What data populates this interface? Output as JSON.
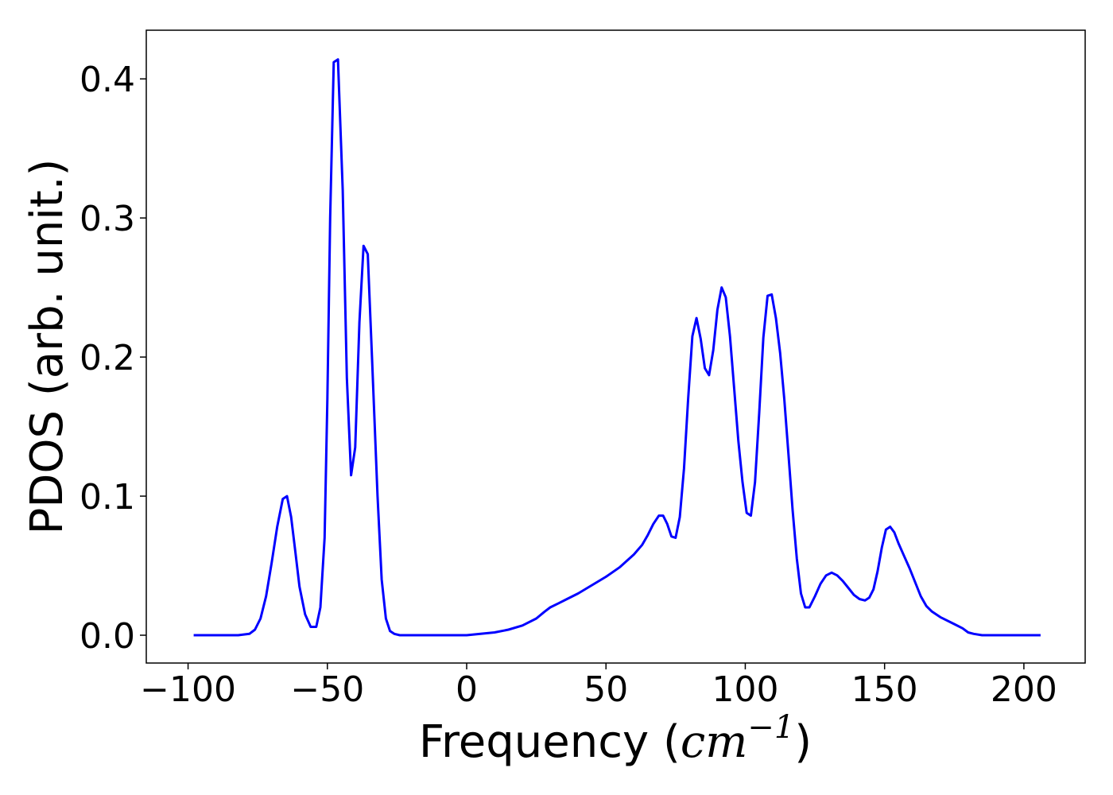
{
  "chart_data": {
    "type": "line",
    "title": "",
    "xlabel_main": "Frequency (",
    "xlabel_unit": "cm",
    "xlabel_exp": "−1",
    "xlabel_close": ")",
    "ylabel": "PDOS (arb. unit.)",
    "xlim": [
      -115,
      222
    ],
    "ylim": [
      -0.02,
      0.435
    ],
    "xticks": [
      -100,
      -50,
      0,
      50,
      100,
      150,
      200
    ],
    "xtick_labels": [
      "−100",
      "−50",
      "0",
      "50",
      "100",
      "150",
      "200"
    ],
    "yticks": [
      0.0,
      0.1,
      0.2,
      0.3,
      0.4
    ],
    "ytick_labels": [
      "0.0",
      "0.1",
      "0.2",
      "0.3",
      "0.4"
    ],
    "grid": false,
    "line_color": "#0000ff",
    "series": [
      {
        "x": [
          -98,
          -90,
          -82,
          -78,
          -76,
          -74,
          -72,
          -70,
          -68,
          -66,
          -64.5,
          -63,
          -61.5,
          -60,
          -58,
          -56,
          -54,
          -52.5,
          -51,
          -50,
          -49,
          -47.7,
          -46.2,
          -44.5,
          -43,
          -41.5,
          -40,
          -38.5,
          -37,
          -35.5,
          -34,
          -32,
          -30.5,
          -29,
          -27.5,
          -26,
          -24,
          -20,
          -10,
          0,
          5,
          10,
          15,
          20,
          25,
          28,
          30,
          33,
          36,
          40,
          45,
          50,
          55,
          60,
          63,
          65,
          67,
          69,
          70.5,
          72,
          73.5,
          75,
          76.5,
          78,
          79.5,
          81,
          82.5,
          84,
          85.5,
          87,
          88.5,
          90,
          91.5,
          93,
          94.5,
          96,
          97.5,
          99,
          100.5,
          102,
          103.5,
          105,
          106.5,
          108,
          109.5,
          111,
          112.5,
          114,
          115.5,
          117,
          118.5,
          120,
          121.5,
          123,
          125,
          127,
          129,
          131,
          133,
          135,
          137,
          139,
          141,
          143,
          144.5,
          146,
          147.5,
          149,
          150.5,
          152,
          153.5,
          155,
          157,
          159,
          161,
          163,
          165,
          167,
          170,
          175,
          178,
          180,
          182,
          185,
          190,
          206
        ],
        "y": [
          0.0,
          0.0,
          0.0,
          0.001,
          0.004,
          0.012,
          0.028,
          0.052,
          0.078,
          0.098,
          0.1,
          0.085,
          0.06,
          0.035,
          0.015,
          0.006,
          0.006,
          0.02,
          0.07,
          0.17,
          0.3,
          0.412,
          0.414,
          0.32,
          0.185,
          0.115,
          0.135,
          0.225,
          0.28,
          0.274,
          0.2,
          0.1,
          0.04,
          0.012,
          0.003,
          0.001,
          0.0,
          0.0,
          0.0,
          0.0,
          0.001,
          0.002,
          0.004,
          0.007,
          0.012,
          0.017,
          0.02,
          0.023,
          0.026,
          0.03,
          0.036,
          0.042,
          0.049,
          0.058,
          0.065,
          0.072,
          0.08,
          0.086,
          0.086,
          0.08,
          0.071,
          0.07,
          0.085,
          0.12,
          0.17,
          0.215,
          0.228,
          0.213,
          0.192,
          0.187,
          0.205,
          0.234,
          0.25,
          0.243,
          0.215,
          0.178,
          0.14,
          0.11,
          0.088,
          0.086,
          0.11,
          0.16,
          0.214,
          0.244,
          0.245,
          0.228,
          0.203,
          0.17,
          0.13,
          0.09,
          0.055,
          0.03,
          0.02,
          0.02,
          0.028,
          0.037,
          0.043,
          0.045,
          0.043,
          0.039,
          0.034,
          0.029,
          0.026,
          0.025,
          0.027,
          0.033,
          0.046,
          0.063,
          0.076,
          0.078,
          0.074,
          0.066,
          0.057,
          0.048,
          0.038,
          0.028,
          0.021,
          0.017,
          0.013,
          0.008,
          0.005,
          0.002,
          0.001,
          0.0,
          0.0,
          0.0
        ]
      }
    ]
  }
}
